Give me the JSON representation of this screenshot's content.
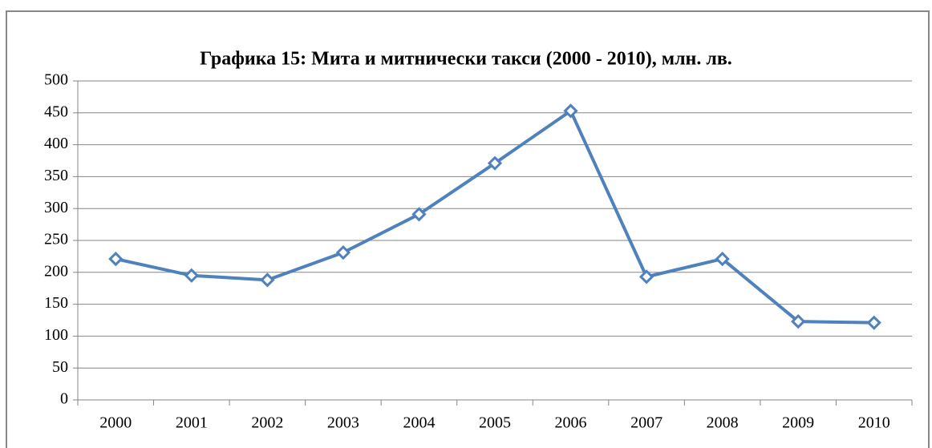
{
  "chart_data": {
    "type": "line",
    "title": "Графика 15: Мита и митнически такси (2000 - 2010), млн. лв.",
    "categories": [
      "2000",
      "2001",
      "2002",
      "2003",
      "2004",
      "2005",
      "2006",
      "2007",
      "2008",
      "2009",
      "2010"
    ],
    "series": [
      {
        "name": "Мита и митнически такси",
        "color": "#4f81bd",
        "values": [
          221,
          195,
          188,
          231,
          291,
          371,
          453,
          193,
          221,
          123,
          121
        ]
      }
    ],
    "ylim": [
      0,
      500
    ],
    "yticks": [
      0,
      50,
      100,
      150,
      200,
      250,
      300,
      350,
      400,
      450,
      500
    ],
    "grid": true
  }
}
